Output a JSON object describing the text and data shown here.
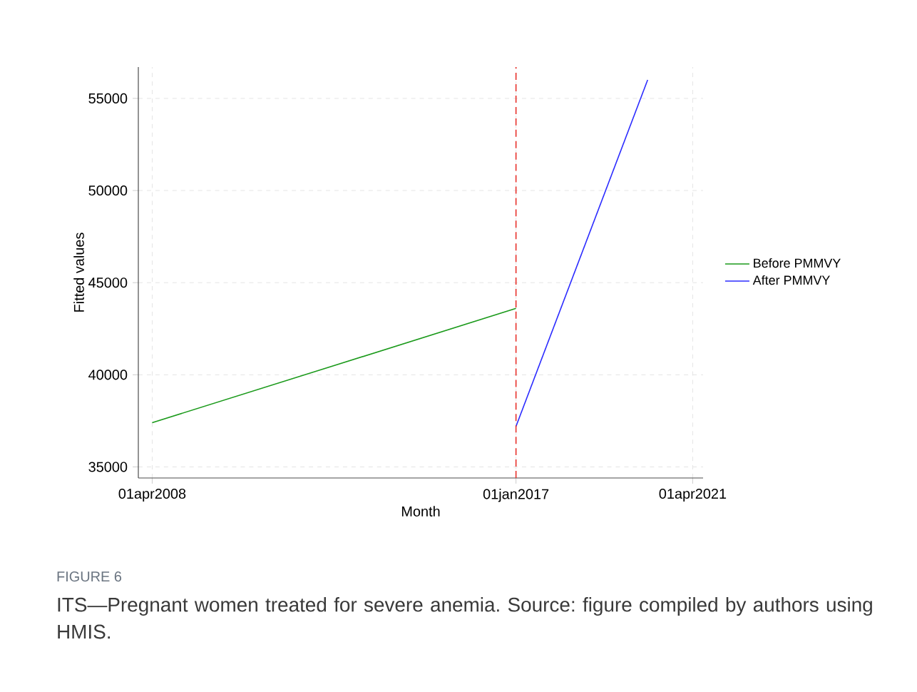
{
  "chart_data": {
    "type": "line",
    "xlabel": "Month",
    "ylabel": "Fitted values",
    "xlim": [
      "2007-12",
      "2021-07"
    ],
    "xticks": [
      {
        "value": "2008-04-01",
        "label": "01apr2008"
      },
      {
        "value": "2017-01-01",
        "label": "01jan2017"
      },
      {
        "value": "2021-04-01",
        "label": "01apr2021"
      }
    ],
    "ylim": [
      34400,
      56700
    ],
    "yticks": [
      35000,
      40000,
      45000,
      50000,
      55000
    ],
    "series": [
      {
        "name": "Before PMMVY",
        "color": "#1a9a1a",
        "x": [
          "2008-04",
          "2017-01"
        ],
        "values": [
          37400,
          43600
        ]
      },
      {
        "name": "After PMMVY",
        "color": "#2b2bff",
        "x": [
          "2017-01",
          "2020-03"
        ],
        "values": [
          37200,
          56000
        ]
      }
    ],
    "ref_lines": [
      {
        "axis": "x",
        "value": "2017-01-01",
        "color": "#e8302a",
        "line_style": "dashed"
      }
    ],
    "grid": true,
    "legend": "right",
    "line_style": "solid",
    "annotations": [
      "FIGURE 6",
      "ITS—Pregnant women treated for severe anemia. Source: figure compiled by authors using HMIS."
    ]
  }
}
